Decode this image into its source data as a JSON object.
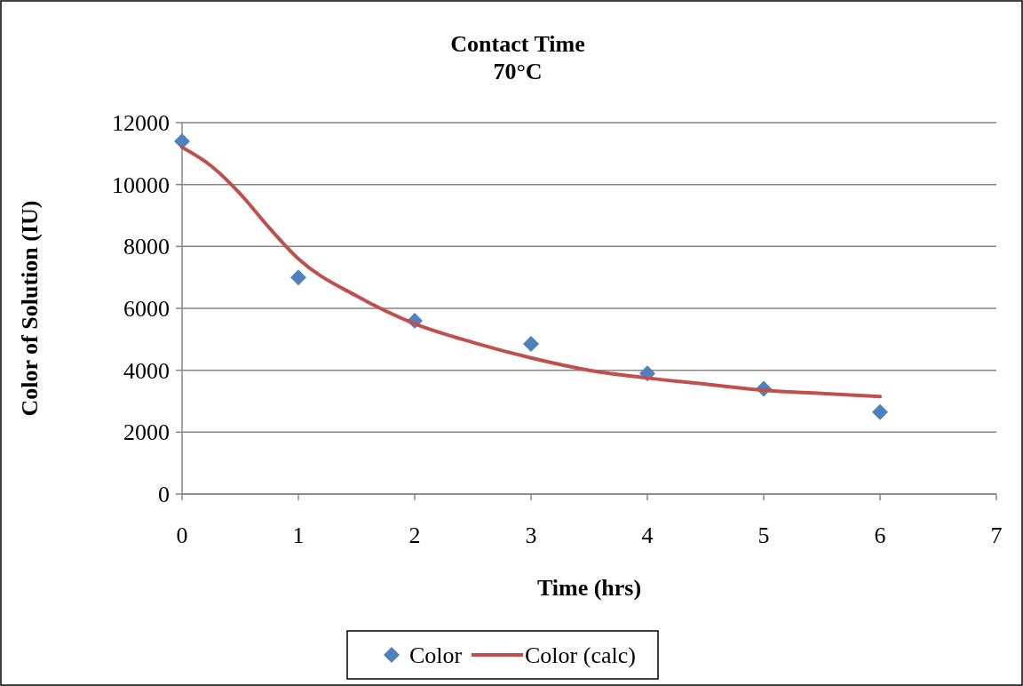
{
  "chart_data": {
    "type": "scatter",
    "title": "Contact Time\n70°C",
    "xlabel": "Time (hrs)",
    "ylabel": "Color of Solution (IU)",
    "x": [
      0,
      1,
      2,
      3,
      4,
      5,
      6
    ],
    "series": [
      {
        "name": "Color",
        "color": "#4f81bd",
        "marker": "diamond",
        "values": [
          11400,
          7000,
          5600,
          4850,
          3900,
          3400,
          2650
        ]
      },
      {
        "name": "Color (calc)",
        "color": "#c0504d",
        "type": "line",
        "marker": "none",
        "x": [
          0,
          0.25,
          0.5,
          0.75,
          1,
          1.5,
          2,
          2.5,
          3,
          3.5,
          4,
          4.5,
          5,
          5.5,
          6
        ],
        "values": [
          11200,
          10600,
          9700,
          8600,
          7600,
          6400,
          5500,
          4900,
          4400,
          4000,
          3750,
          3550,
          3350,
          3250,
          3150
        ]
      }
    ],
    "xlim": [
      0,
      7
    ],
    "xticks": [
      0,
      1,
      2,
      3,
      4,
      5,
      6,
      7
    ],
    "ylim": [
      0,
      12000
    ],
    "yticks": [
      0,
      2000,
      4000,
      6000,
      8000,
      10000,
      12000
    ],
    "grid": "y",
    "legend": "bottom"
  }
}
